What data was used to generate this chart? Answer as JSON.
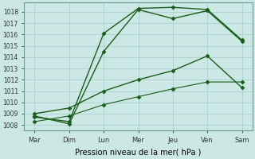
{
  "xlabel": "Pression niveau de la mer( hPa )",
  "days": [
    "Mar",
    "Dim",
    "Lun",
    "Mer",
    "Jeu",
    "Ven",
    "Sam"
  ],
  "day_positions": [
    0,
    1,
    2,
    3,
    4,
    5,
    6
  ],
  "ylim": [
    1007.5,
    1018.8
  ],
  "yticks": [
    1008,
    1009,
    1010,
    1011,
    1012,
    1013,
    1014,
    1015,
    1016,
    1017,
    1018
  ],
  "line_color": "#1a5c1a",
  "bg_color": "#cce8e4",
  "grid_color": "#a8ccc8",
  "lines": [
    {
      "x": [
        0,
        1,
        2,
        3,
        4,
        5,
        6
      ],
      "y": [
        1008.7,
        1008.3,
        1016.1,
        1018.3,
        1018.4,
        1018.2,
        1015.5
      ],
      "marker": "D",
      "markersize": 2.5,
      "linestyle": "-",
      "linewidth": 1.0
    },
    {
      "x": [
        0,
        1,
        2,
        3,
        4,
        5,
        6
      ],
      "y": [
        1008.8,
        1008.1,
        1014.5,
        1018.2,
        1017.4,
        1018.1,
        1015.4
      ],
      "marker": "D",
      "markersize": 2.5,
      "linestyle": "-",
      "linewidth": 1.0
    },
    {
      "x": [
        0,
        1,
        2,
        3,
        4,
        5,
        6
      ],
      "y": [
        1009.0,
        1009.5,
        1011.0,
        1012.0,
        1012.8,
        1014.1,
        1011.3
      ],
      "marker": "D",
      "markersize": 2.5,
      "linestyle": "-",
      "linewidth": 1.0
    },
    {
      "x": [
        0,
        1,
        2,
        3,
        4,
        5,
        6
      ],
      "y": [
        1008.3,
        1008.8,
        1009.8,
        1010.5,
        1011.2,
        1011.8,
        1011.8
      ],
      "marker": "D",
      "markersize": 2.5,
      "linestyle": "-",
      "linewidth": 0.8
    }
  ]
}
